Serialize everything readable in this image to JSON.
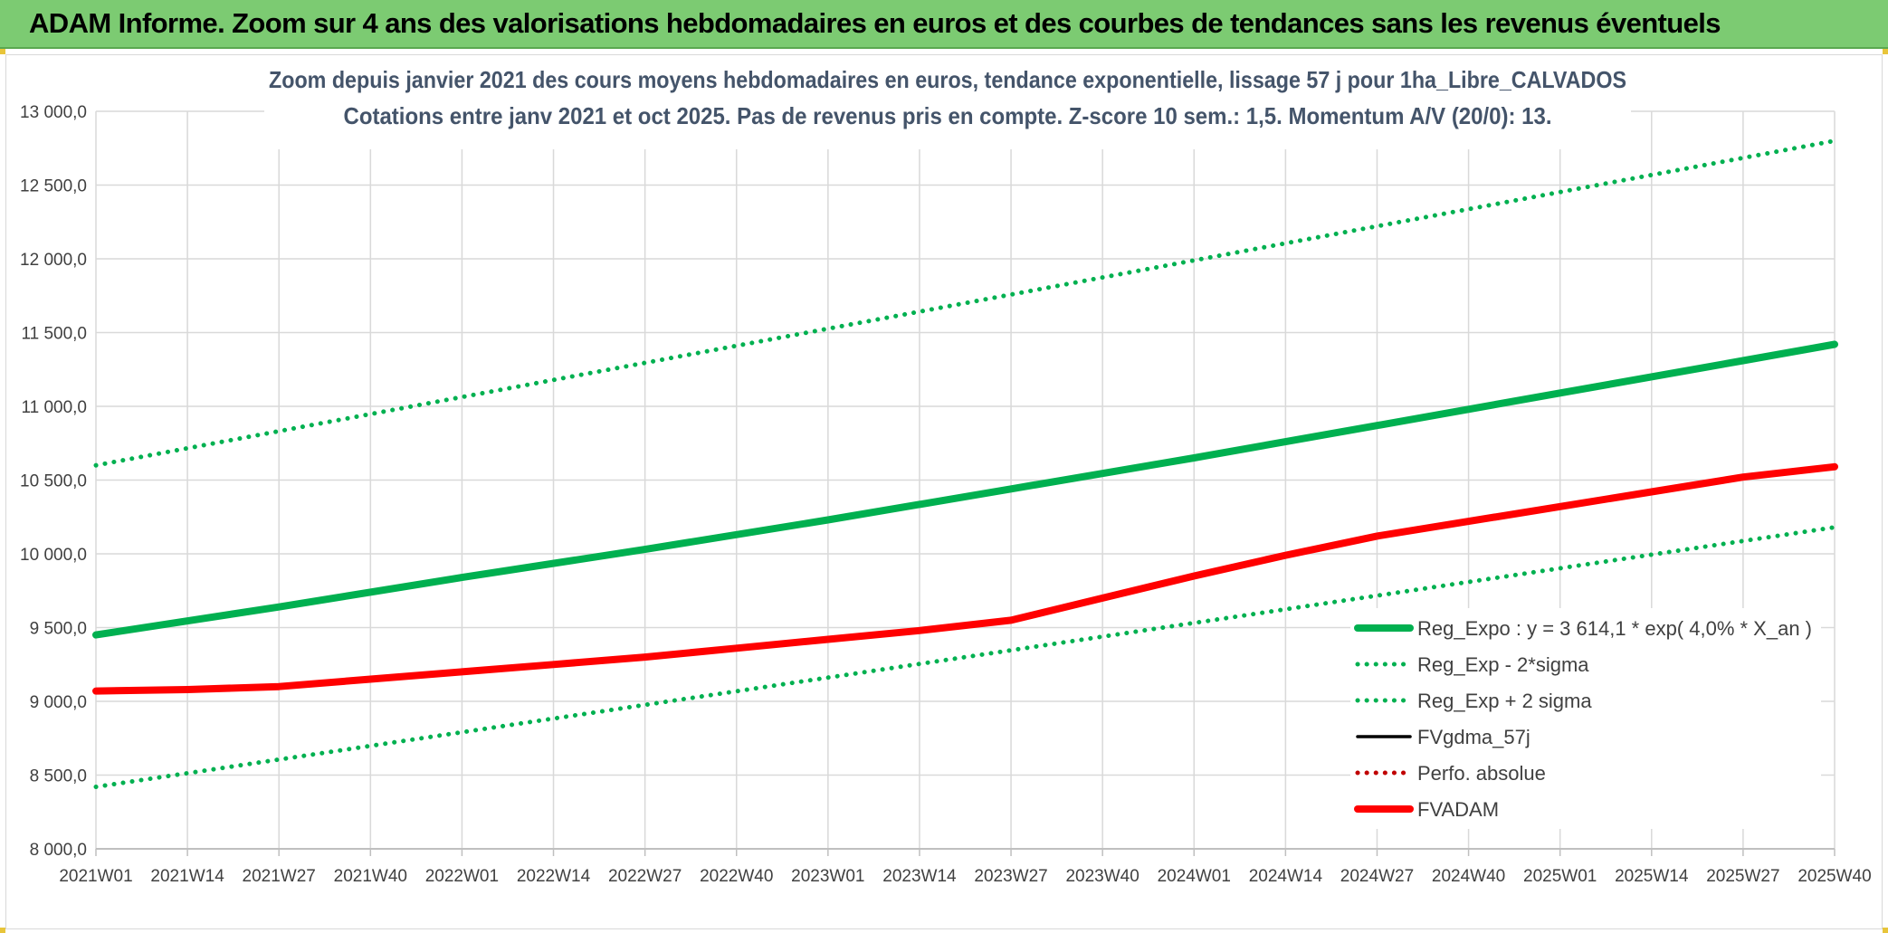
{
  "banner": {
    "title": "ADAM Informe. Zoom sur 4 ans des valorisations hebdomadaires en euros et des courbes de tendances sans les revenus éventuels"
  },
  "colors": {
    "banner_bg": "#7ccb72",
    "green": "#00b050",
    "red": "#ff0000",
    "black": "#000000",
    "dark_red_dotted": "#c00000",
    "grid": "#d9d9d9",
    "title_text": "#44546a"
  },
  "chart_data": {
    "type": "line",
    "title_lines": [
      "Zoom depuis janvier 2021 des cours moyens hebdomadaires en euros, tendance exponentielle, lissage 57 j pour 1ha_Libre_CALVADOS",
      "Cotations entre janv 2021 et oct 2025. Pas de revenus pris en compte. Z-score 10 sem.: 1,5. Momentum A/V (20/0): 13."
    ],
    "x_tick_labels": [
      "2021W01",
      "2021W14",
      "2021W27",
      "2021W40",
      "2022W01",
      "2022W14",
      "2022W27",
      "2022W40",
      "2023W01",
      "2023W14",
      "2023W27",
      "2023W40",
      "2024W01",
      "2024W14",
      "2024W27",
      "2024W40",
      "2025W01",
      "2025W14",
      "2025W27",
      "2025W40"
    ],
    "y_tick_labels": [
      "8 000,0",
      "8 500,0",
      "9 000,0",
      "9 500,0",
      "10 000,0",
      "10 500,0",
      "11 000,0",
      "11 500,0",
      "12 000,0",
      "12 500,0",
      "13 000,0"
    ],
    "ylim": [
      8000,
      13000
    ],
    "y_step": 500,
    "x_index_range": [
      0,
      19
    ],
    "series": [
      {
        "key": "reg_plus",
        "name": "Reg_Exp + 2 sigma",
        "style": "dotted",
        "color": "#00b050",
        "points": [
          [
            0,
            10600
          ],
          [
            19,
            12800
          ]
        ]
      },
      {
        "key": "reg_expo",
        "name": "Reg_Expo : y = 3 614,1 * exp( 4,0% *  X_an )",
        "style": "solid-thick",
        "color": "#00b050",
        "points": [
          [
            0,
            9450
          ],
          [
            2,
            9640
          ],
          [
            4,
            9840
          ],
          [
            6,
            10030
          ],
          [
            8,
            10230
          ],
          [
            10,
            10440
          ],
          [
            12,
            10650
          ],
          [
            14,
            10870
          ],
          [
            16,
            11090
          ],
          [
            18,
            11310
          ],
          [
            19,
            11420
          ]
        ]
      },
      {
        "key": "reg_minus",
        "name": "Reg_Exp - 2*sigma",
        "style": "dotted",
        "color": "#00b050",
        "points": [
          [
            0,
            8420
          ],
          [
            19,
            10180
          ]
        ]
      },
      {
        "key": "fvgdma",
        "name": "FVgdma_57j",
        "style": "solid",
        "color": "#000000",
        "points": [
          [
            0,
            9070
          ],
          [
            1,
            9080
          ],
          [
            2,
            9100
          ],
          [
            3,
            9150
          ],
          [
            4,
            9200
          ],
          [
            5,
            9250
          ],
          [
            6,
            9300
          ],
          [
            7,
            9360
          ],
          [
            8,
            9420
          ],
          [
            9,
            9480
          ],
          [
            10,
            9560
          ],
          [
            11,
            9700
          ],
          [
            12,
            9850
          ],
          [
            13,
            9990
          ],
          [
            14,
            10110
          ],
          [
            15,
            10210
          ],
          [
            16,
            10320
          ],
          [
            17,
            10420
          ],
          [
            18,
            10510
          ],
          [
            19,
            10580
          ]
        ]
      },
      {
        "key": "fvadam",
        "name": "FVADAM",
        "style": "solid-thick",
        "color": "#ff0000",
        "points": [
          [
            0,
            9070
          ],
          [
            1,
            9080
          ],
          [
            2,
            9100
          ],
          [
            3,
            9150
          ],
          [
            4,
            9200
          ],
          [
            5,
            9250
          ],
          [
            6,
            9300
          ],
          [
            7,
            9360
          ],
          [
            8,
            9420
          ],
          [
            9,
            9480
          ],
          [
            10,
            9550
          ],
          [
            11,
            9700
          ],
          [
            12,
            9850
          ],
          [
            13,
            9990
          ],
          [
            14,
            10120
          ],
          [
            15,
            10220
          ],
          [
            16,
            10320
          ],
          [
            17,
            10420
          ],
          [
            18,
            10520
          ],
          [
            19,
            10590
          ]
        ]
      }
    ],
    "legend": {
      "position": "bottom-right",
      "entries": [
        {
          "label": "Reg_Expo : y = 3 614,1 * exp( 4,0% *  X_an )",
          "style": "solid-thick",
          "color": "#00b050"
        },
        {
          "label": "Reg_Exp - 2*sigma",
          "style": "dotted",
          "color": "#00b050"
        },
        {
          "label": "Reg_Exp + 2 sigma",
          "style": "dotted",
          "color": "#00b050"
        },
        {
          "label": "FVgdma_57j",
          "style": "solid",
          "color": "#000000"
        },
        {
          "label": "Perfo. absolue",
          "style": "dotted",
          "color": "#c00000"
        },
        {
          "label": "FVADAM",
          "style": "solid-thick",
          "color": "#ff0000"
        }
      ]
    },
    "grid": true
  }
}
